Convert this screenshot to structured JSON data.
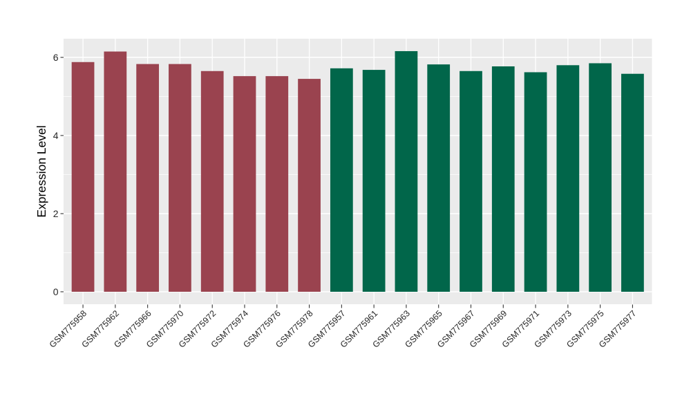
{
  "chart_data": {
    "type": "bar",
    "title": "",
    "xlabel": "",
    "ylabel": "Expression Level",
    "categories": [
      "GSM775958",
      "GSM775962",
      "GSM775966",
      "GSM775970",
      "GSM775972",
      "GSM775974",
      "GSM775976",
      "GSM775978",
      "GSM775957",
      "GSM775961",
      "GSM775963",
      "GSM775965",
      "GSM775967",
      "GSM775969",
      "GSM775971",
      "GSM775973",
      "GSM775975",
      "GSM775977"
    ],
    "values": [
      5.88,
      6.15,
      5.83,
      5.83,
      5.65,
      5.52,
      5.52,
      5.45,
      5.72,
      5.68,
      6.16,
      5.82,
      5.65,
      5.77,
      5.62,
      5.8,
      5.85,
      5.58
    ],
    "groups": [
      "group1",
      "group1",
      "group1",
      "group1",
      "group1",
      "group1",
      "group1",
      "group1",
      "group2",
      "group2",
      "group2",
      "group2",
      "group2",
      "group2",
      "group2",
      "group2",
      "group2",
      "group2"
    ],
    "group_colors": {
      "group1": "#9A434F",
      "group2": "#01664A"
    },
    "yticks": [
      0,
      2,
      4,
      6
    ],
    "minor_yticks": [
      1,
      3,
      5
    ],
    "ylim": [
      -0.32,
      6.48
    ],
    "x_tick_angle": 45,
    "bar_width_fraction": 0.7,
    "panel_background": "#EBEBEB",
    "gridline_color": "#FFFFFF",
    "legend_position": "none"
  },
  "styles": {
    "axis_text_color": "#262626",
    "axis_title_color": "#000000",
    "tick_mark_color": "#333333",
    "figure_background": "#FFFFFF"
  }
}
